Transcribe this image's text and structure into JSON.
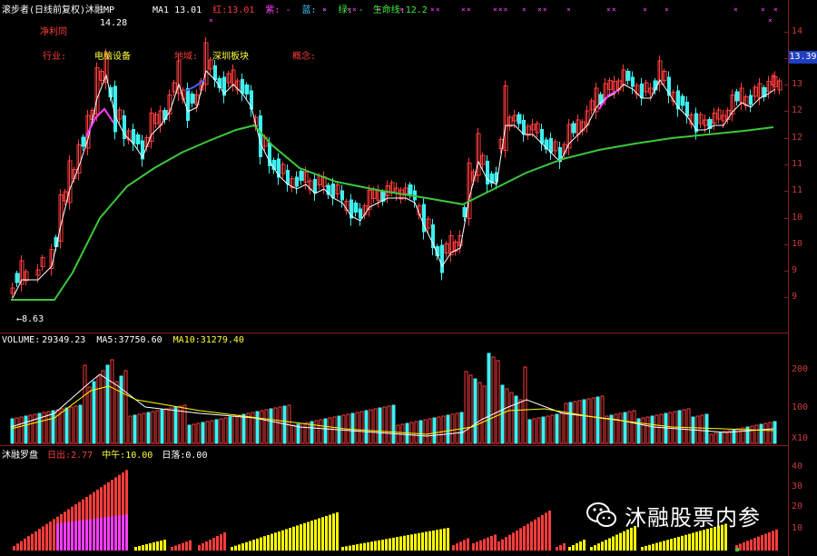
{
  "header": {
    "title": "滚步者(日线前复权)沐融MP",
    "ma_label": "MA1",
    "ma_value": "13.01",
    "red_label": "红:",
    "red_value": "13.01",
    "purple_label": "紫: -",
    "blue_label": "蓝: -",
    "green_label": "绿: -",
    "lifeline_label": "生命线:",
    "lifeline_value": "12.2"
  },
  "tags": {
    "net_profit": "净利同",
    "industry": "行业:",
    "industry_value": "电脑设备",
    "region": "地域:",
    "region_value": "深圳板块",
    "concept": "概念:"
  },
  "price": {
    "high_label": "14.28",
    "low_label": "←8.63",
    "current": "13.39"
  },
  "price_axis": [
    "14",
    "13",
    "13",
    "12",
    "12",
    "11",
    "11",
    "10",
    "10",
    "9",
    "9"
  ],
  "volume_header": {
    "label": "VOLUME:",
    "value": "29349.23",
    "ma5_label": "MA5:",
    "ma5_value": "37750.60",
    "ma10_label": "MA10:",
    "ma10_value": "31279.40"
  },
  "volume_axis": [
    "200",
    "100"
  ],
  "volume_unit": "X10",
  "indicator_header": {
    "label": "沐融罗盘",
    "sun_label": "日出:",
    "sun_value": "2.77",
    "noon_label": "中午:",
    "noon_value": "10.00",
    "sunset_label": "日落:",
    "sunset_value": "0.00"
  },
  "indicator_axis": [
    "40",
    "30",
    "20",
    "10"
  ],
  "watermark": "沐融股票内参",
  "colors": {
    "up": "#ff3c3c",
    "down": "#3cf0f0",
    "ma1": "#ffffff",
    "lifeline": "#3cc83c",
    "purple": "#ff3cff",
    "yellow": "#ffff00",
    "axis": "#c83c3c"
  }
}
